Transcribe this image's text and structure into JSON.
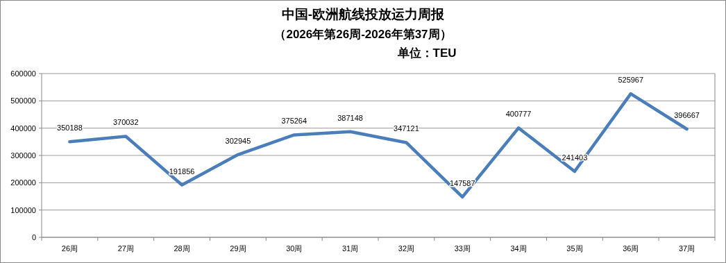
{
  "chart_data": {
    "type": "line",
    "title": "中国-欧洲航线投放运力周报",
    "subtitle": "（2026年第26周-2026年第37周）",
    "annotations": [
      "单位：TEU"
    ],
    "categories": [
      "26周",
      "27周",
      "28周",
      "29周",
      "30周",
      "31周",
      "32周",
      "33周",
      "34周",
      "35周",
      "36周",
      "37周"
    ],
    "series": [
      {
        "color": "#4a7ebb",
        "values": [
          350188,
          370032,
          191856,
          302945,
          375264,
          387148,
          347121,
          147587,
          400777,
          241403,
          525967,
          396667
        ]
      }
    ],
    "ylim": [
      0,
      600000
    ],
    "yticks": [
      0,
      100000,
      200000,
      300000,
      400000,
      500000,
      600000
    ],
    "grid": "y",
    "data_labels": true,
    "marker": "none",
    "line_style": "solid"
  }
}
